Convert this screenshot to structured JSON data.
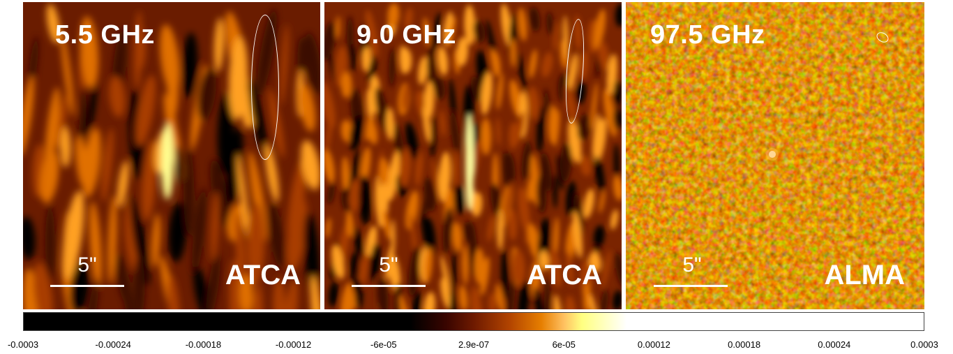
{
  "panels": [
    {
      "frequency": "5.5 GHz",
      "instrument": "ATCA",
      "scale_label": "5\""
    },
    {
      "frequency": "9.0 GHz",
      "instrument": "ATCA",
      "scale_label": "5\""
    },
    {
      "frequency": "97.5 GHz",
      "instrument": "ALMA",
      "scale_label": "5\""
    }
  ],
  "colorbar": {
    "ticks": [
      "-0.0003",
      "-0.00024",
      "-0.00018",
      "-0.00012",
      "-6e-05",
      "2.9e-07",
      "6e-05",
      "0.00012",
      "0.00018",
      "0.00024",
      "0.0003"
    ]
  },
  "colors": {
    "dark": "#000000",
    "mid": "#a83c00",
    "bright": "#ffa020",
    "peak": "#ffffe0"
  }
}
